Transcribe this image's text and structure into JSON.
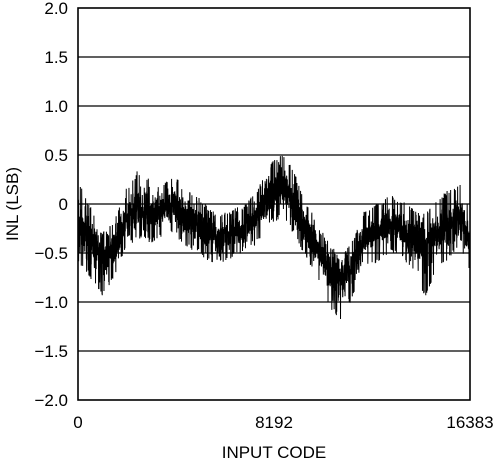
{
  "chart_data": {
    "type": "line",
    "title": "",
    "xlabel": "INPUT CODE",
    "ylabel": "INL (LSB)",
    "xlim": [
      0,
      16383
    ],
    "ylim": [
      -2.0,
      2.0
    ],
    "x_ticks": [
      "0",
      "8192",
      "16383"
    ],
    "y_ticks": [
      "2.0",
      "1.5",
      "1.0",
      "0.5",
      "0",
      "−0.5",
      "−1.0",
      "−1.5",
      "−2.0"
    ],
    "grid": true,
    "series": [
      {
        "name": "",
        "x": [
          0,
          500,
          1000,
          1500,
          2000,
          2500,
          3000,
          3500,
          4000,
          4500,
          5000,
          5500,
          6000,
          6500,
          7000,
          7500,
          8000,
          8500,
          9000,
          9500,
          10000,
          10500,
          11000,
          11500,
          12000,
          12500,
          13000,
          13500,
          14000,
          14500,
          15000,
          15500,
          16000,
          16383
        ],
        "center": [
          -0.25,
          -0.35,
          -0.55,
          -0.45,
          -0.15,
          -0.05,
          -0.1,
          -0.05,
          0.0,
          -0.15,
          -0.2,
          -0.3,
          -0.35,
          -0.3,
          -0.25,
          -0.1,
          0.1,
          0.2,
          0.05,
          -0.25,
          -0.45,
          -0.7,
          -0.8,
          -0.6,
          -0.35,
          -0.3,
          -0.2,
          -0.25,
          -0.35,
          -0.45,
          -0.3,
          -0.2,
          -0.15,
          -0.35
        ],
        "upper": [
          0.25,
          0.0,
          -0.3,
          -0.15,
          0.15,
          0.35,
          0.25,
          0.2,
          0.3,
          0.15,
          0.1,
          -0.05,
          -0.1,
          -0.05,
          0.0,
          0.15,
          0.4,
          0.55,
          0.35,
          0.05,
          -0.2,
          -0.4,
          -0.55,
          -0.35,
          -0.05,
          0.0,
          0.1,
          0.05,
          -0.05,
          -0.1,
          0.05,
          0.15,
          0.2,
          -0.05
        ],
        "lower": [
          -0.6,
          -0.75,
          -0.95,
          -0.75,
          -0.45,
          -0.35,
          -0.4,
          -0.35,
          -0.3,
          -0.45,
          -0.5,
          -0.6,
          -0.6,
          -0.55,
          -0.5,
          -0.4,
          -0.2,
          -0.15,
          -0.3,
          -0.55,
          -0.75,
          -1.05,
          -1.2,
          -0.95,
          -0.65,
          -0.6,
          -0.5,
          -0.55,
          -0.7,
          -0.95,
          -0.7,
          -0.55,
          -0.45,
          -0.7
        ]
      }
    ]
  }
}
